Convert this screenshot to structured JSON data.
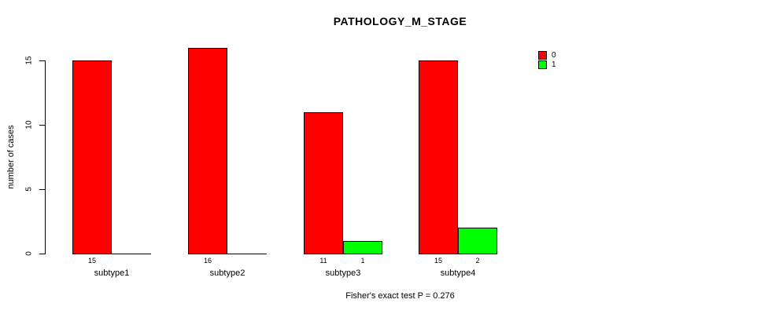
{
  "chart_data": {
    "type": "bar",
    "title": "PATHOLOGY_M_STAGE",
    "ylabel": "number of cases",
    "xlabel": "",
    "footer": "Fisher's exact test P = 0.276",
    "categories": [
      "subtype1",
      "subtype2",
      "subtype3",
      "subtype4"
    ],
    "series": [
      {
        "name": "0",
        "color": "#ff0000",
        "values": [
          15,
          16,
          11,
          15
        ]
      },
      {
        "name": "1",
        "color": "#00ff00",
        "values": [
          0,
          0,
          1,
          2
        ]
      }
    ],
    "value_labels": [
      [
        "15",
        ""
      ],
      [
        "16",
        ""
      ],
      [
        "11",
        "1"
      ],
      [
        "15",
        "2"
      ]
    ],
    "yticks": [
      0,
      5,
      10,
      15
    ],
    "ylim": [
      0,
      16
    ],
    "grid": false,
    "legend_position": "top-right",
    "axis_color": "#000000",
    "text_color": "#000000"
  }
}
